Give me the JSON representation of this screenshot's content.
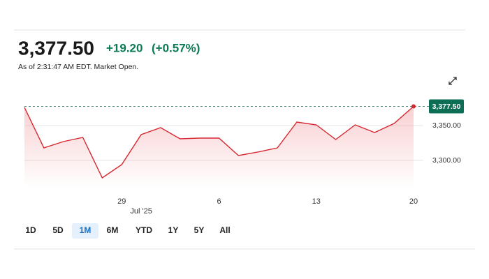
{
  "quote": {
    "price": "3,377.50",
    "change": "+19.20",
    "change_pct": "(+0.57%)",
    "as_of": "As of 2:31:47 AM EDT. Market Open."
  },
  "ranges": [
    "1D",
    "5D",
    "1M",
    "6M",
    "YTD",
    "1Y",
    "5Y",
    "All"
  ],
  "selected_range": "1M",
  "chart_data": {
    "type": "line",
    "categories": [
      null,
      null,
      null,
      null,
      null,
      "29",
      null,
      null,
      null,
      null,
      "6",
      null,
      null,
      null,
      null,
      "13",
      null,
      null,
      null,
      null,
      "20"
    ],
    "category_sublabels": [
      null,
      null,
      null,
      null,
      null,
      null,
      "Jul '25",
      null,
      null,
      null,
      null,
      null,
      null,
      null,
      null,
      null,
      null,
      null,
      null,
      null,
      null
    ],
    "values": [
      3376,
      3318,
      3327,
      3333,
      3275,
      3294,
      3337,
      3347,
      3331,
      3332,
      3332,
      3307,
      3312,
      3318,
      3355,
      3351,
      3330,
      3351,
      3340,
      3353,
      3377.5
    ],
    "value_labels": [
      null,
      null,
      null,
      null,
      null,
      null,
      null,
      null,
      null,
      null,
      null,
      null,
      null,
      null,
      null,
      null,
      null,
      null,
      null,
      null,
      "3,377.50"
    ],
    "color": "#d7262f",
    "ylim": [
      3260,
      3390
    ],
    "yticks": [
      {
        "value": 3300,
        "label": "3,300.00"
      },
      {
        "value": 3350,
        "label": "3,350.00"
      }
    ],
    "grid": true
  }
}
